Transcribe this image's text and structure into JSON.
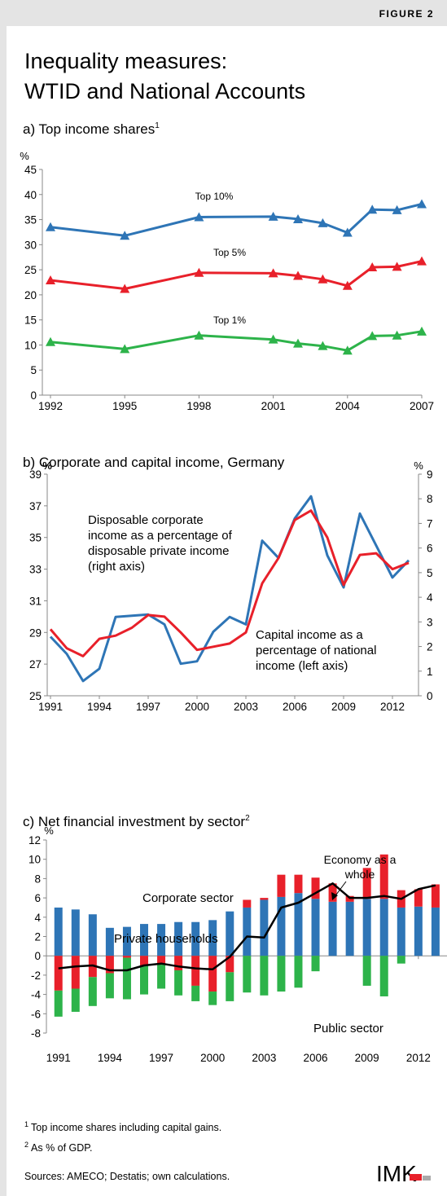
{
  "figure_label": "FIGURE 2",
  "title": [
    "Inequality measures:",
    "WTID and National Accounts"
  ],
  "footnotes": [
    {
      "mark": "1",
      "text": "Top income shares including capital gains."
    },
    {
      "mark": "2",
      "text": "As % of GDP."
    }
  ],
  "sources": "Sources: AMECO; Destatis; own calculations.",
  "logo": "IMK",
  "chart_data": [
    {
      "type": "line",
      "subtitle": "a) Top income shares",
      "subtitle_mark": "1",
      "ylabel": "%",
      "x": [
        1992,
        1995,
        1998,
        2001,
        2002,
        2003,
        2004,
        2005,
        2006,
        2007
      ],
      "xlim": [
        1992,
        2007
      ],
      "xticks": [
        1992,
        1995,
        1998,
        2001,
        2004,
        2007
      ],
      "ylim": [
        0,
        45
      ],
      "yticks": [
        0,
        5,
        10,
        15,
        20,
        25,
        30,
        35,
        40,
        45
      ],
      "marker": "triangle",
      "series": [
        {
          "name": [
            "Top 10%"
          ],
          "color": "#2e75b6",
          "values": [
            33.5,
            31.8,
            35.5,
            35.6,
            35.1,
            34.3,
            32.4,
            37.0,
            36.9,
            38.1
          ]
        },
        {
          "name": [
            "Top 5%"
          ],
          "color": "#e8202a",
          "values": [
            22.9,
            21.2,
            24.4,
            24.3,
            23.8,
            23.1,
            21.8,
            25.5,
            25.6,
            26.7
          ]
        },
        {
          "name": [
            "Top 1%"
          ],
          "color": "#2db34a",
          "values": [
            10.6,
            9.2,
            11.9,
            11.1,
            10.3,
            9.8,
            8.9,
            11.8,
            11.9,
            12.7
          ]
        }
      ]
    },
    {
      "type": "line",
      "subtitle": "b) Corporate and capital income, Germany",
      "ylabel": "%",
      "y2label": "%",
      "x": [
        1991,
        1992,
        1993,
        1994,
        1995,
        1996,
        1997,
        1998,
        1999,
        2000,
        2001,
        2002,
        2003,
        2004,
        2005,
        2006,
        2007,
        2008,
        2009,
        2010,
        2011,
        2012,
        2013
      ],
      "xlim": [
        1991,
        2013
      ],
      "xticks": [
        1991,
        1994,
        1997,
        2000,
        2003,
        2006,
        2009,
        2012
      ],
      "ylim": [
        25,
        39
      ],
      "yticks": [
        25,
        27,
        29,
        31,
        33,
        35,
        37,
        39
      ],
      "y2lim": [
        0,
        9
      ],
      "y2ticks": [
        0,
        1,
        2,
        3,
        4,
        5,
        6,
        7,
        8,
        9
      ],
      "series": [
        {
          "name": [
            "Disposable corporate",
            "income as a percentage of",
            "disposable private income",
            "(right axis)"
          ],
          "color": "#2e75b6",
          "axis": "y2",
          "values": [
            2.4,
            1.7,
            0.6,
            1.1,
            3.2,
            3.25,
            3.3,
            2.9,
            1.3,
            1.4,
            2.6,
            3.2,
            2.9,
            6.3,
            5.6,
            7.2,
            8.1,
            5.7,
            4.4,
            7.4,
            6.1,
            4.8,
            5.5
          ]
        },
        {
          "name": [
            "Capital income as a",
            "percentage of national",
            "income (left axis)"
          ],
          "color": "#e8202a",
          "values": [
            29.2,
            28.0,
            27.5,
            28.6,
            28.8,
            29.3,
            30.1,
            30.0,
            29.0,
            27.9,
            28.1,
            28.3,
            29.0,
            32.1,
            33.7,
            36.1,
            36.7,
            35.0,
            32.0,
            33.9,
            34.0,
            33.0,
            33.4
          ]
        }
      ]
    },
    {
      "type": "bar",
      "stacked": true,
      "subtitle": "c) Net financial investment by sector",
      "subtitle_mark": "2",
      "ylabel": "%",
      "x": [
        1991,
        1992,
        1993,
        1994,
        1995,
        1996,
        1997,
        1998,
        1999,
        2000,
        2001,
        2002,
        2003,
        2004,
        2005,
        2006,
        2007,
        2008,
        2009,
        2010,
        2011,
        2012,
        2013
      ],
      "xlim": [
        1990.3,
        2013.1
      ],
      "xticks": [
        1991,
        1994,
        1997,
        2000,
        2003,
        2006,
        2009,
        2012
      ],
      "ylim": [
        -8,
        12
      ],
      "yticks": [
        -8,
        -6,
        -4,
        -2,
        0,
        2,
        4,
        6,
        8,
        10,
        12
      ],
      "series": [
        {
          "name": [
            "Private households"
          ],
          "color": "#2e75b6",
          "values": [
            5.0,
            4.8,
            4.3,
            2.9,
            3.0,
            3.3,
            3.3,
            3.5,
            3.5,
            3.7,
            4.6,
            5.0,
            5.8,
            6.1,
            6.5,
            5.9,
            5.6,
            5.6,
            5.9,
            5.9,
            5.0,
            5.1,
            5.0
          ]
        },
        {
          "name": [
            "Corporate sector"
          ],
          "color": "#e8202a",
          "values": [
            -3.6,
            -3.4,
            -2.2,
            -1.8,
            -0.2,
            -1.0,
            -0.8,
            -1.5,
            -3.1,
            -3.7,
            -1.7,
            0.8,
            0.2,
            2.3,
            1.9,
            2.2,
            1.9,
            0.6,
            3.2,
            4.6,
            1.8,
            1.8,
            2.4
          ]
        },
        {
          "name": [
            "Public sector"
          ],
          "color": "#2db34a",
          "values": [
            -2.7,
            -2.4,
            -3.0,
            -2.6,
            -4.3,
            -3.0,
            -2.6,
            -2.6,
            -1.6,
            -1.4,
            -3.0,
            -3.8,
            -4.1,
            -3.7,
            -3.3,
            -1.6,
            0,
            0,
            -3.1,
            -4.2,
            -0.8,
            0,
            0
          ]
        },
        {
          "name": [
            "Economy as a",
            "whole"
          ],
          "color": "#000000",
          "type": "line",
          "values": [
            -1.3,
            -1.1,
            -1.0,
            -1.5,
            -1.5,
            -1.0,
            -0.8,
            -1.1,
            -1.3,
            -1.4,
            -0.1,
            2.0,
            1.9,
            5.0,
            5.5,
            6.5,
            7.5,
            6.0,
            6.0,
            6.2,
            5.9,
            6.9,
            7.3
          ]
        }
      ]
    }
  ]
}
